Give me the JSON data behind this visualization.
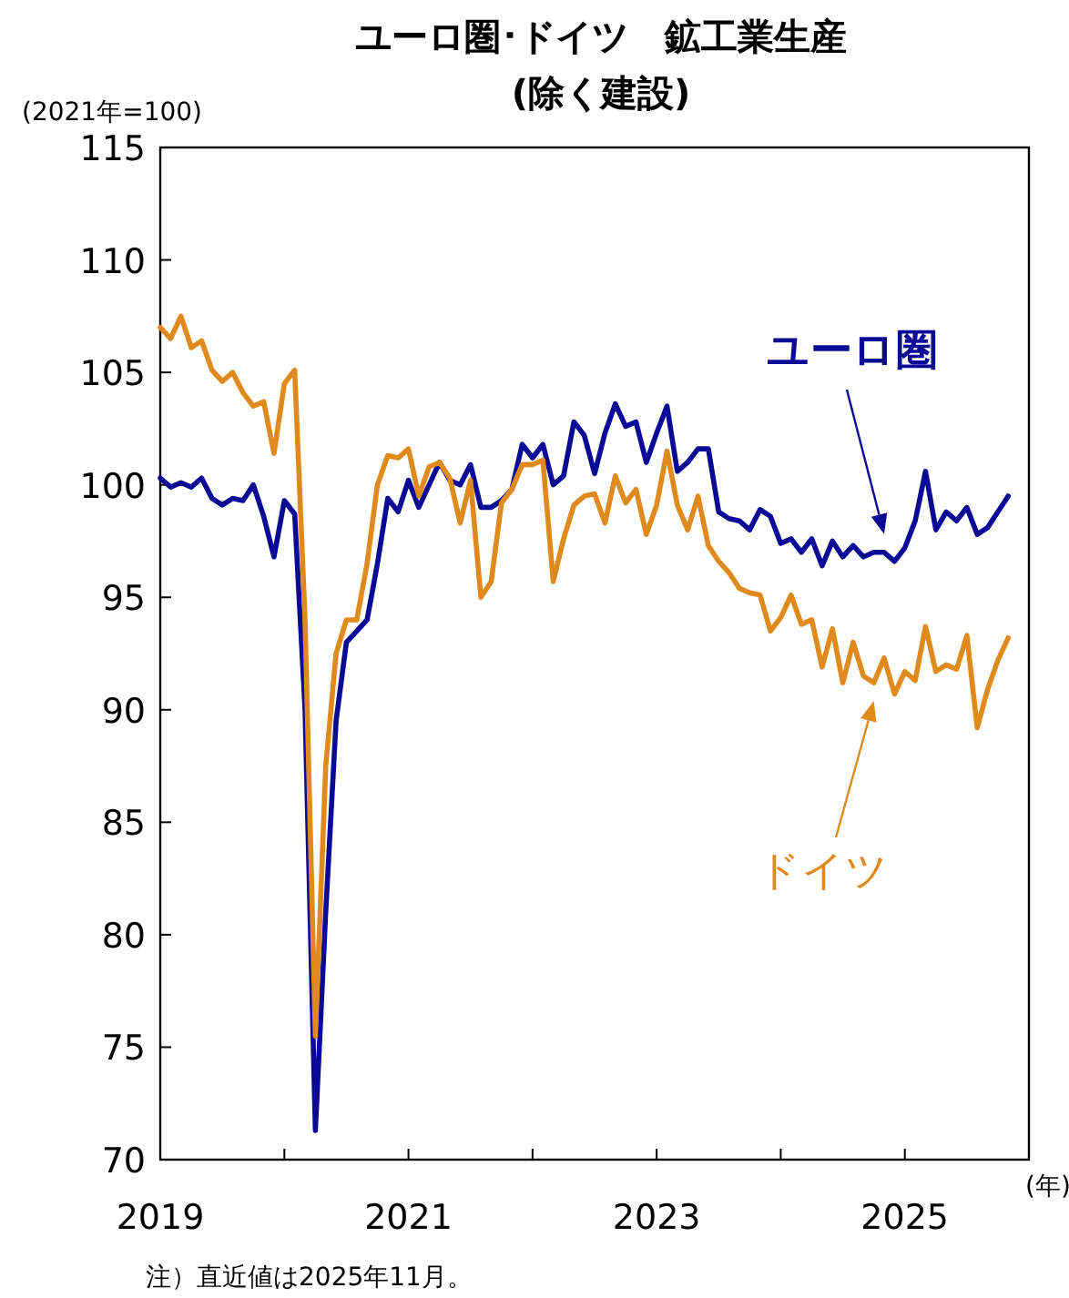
{
  "chart_data": {
    "type": "line",
    "title": "ユーロ圏･ドイツ　鉱工業生産",
    "subtitle": "(除く建設)",
    "ylabel": "(2021年=100)",
    "xlabel": "(年)",
    "annotations": [
      "注）直近値は2025年11月。"
    ],
    "x": [
      "2019-01",
      "2019-02",
      "2019-03",
      "2019-04",
      "2019-05",
      "2019-06",
      "2019-07",
      "2019-08",
      "2019-09",
      "2019-10",
      "2019-11",
      "2019-12",
      "2020-01",
      "2020-02",
      "2020-03",
      "2020-04",
      "2020-05",
      "2020-06",
      "2020-07",
      "2020-08",
      "2020-09",
      "2020-10",
      "2020-11",
      "2020-12",
      "2021-01",
      "2021-02",
      "2021-03",
      "2021-04",
      "2021-05",
      "2021-06",
      "2021-07",
      "2021-08",
      "2021-09",
      "2021-10",
      "2021-11",
      "2021-12",
      "2022-01",
      "2022-02",
      "2022-03",
      "2022-04",
      "2022-05",
      "2022-06",
      "2022-07",
      "2022-08",
      "2022-09",
      "2022-10",
      "2022-11",
      "2022-12",
      "2023-01",
      "2023-02",
      "2023-03",
      "2023-04",
      "2023-05",
      "2023-06",
      "2023-07",
      "2023-08",
      "2023-09",
      "2023-10",
      "2023-11",
      "2023-12",
      "2024-01",
      "2024-02",
      "2024-03",
      "2024-04",
      "2024-05",
      "2024-06",
      "2024-07",
      "2024-08",
      "2024-09",
      "2024-10",
      "2024-11",
      "2024-12",
      "2025-01",
      "2025-02",
      "2025-03",
      "2025-04",
      "2025-05",
      "2025-06",
      "2025-07",
      "2025-08",
      "2025-09",
      "2025-10",
      "2025-11"
    ],
    "series": [
      {
        "name": "ユーロ圏",
        "color": "#0a0a96",
        "values": [
          100.3,
          99.9,
          100.1,
          99.9,
          100.3,
          99.4,
          99.1,
          99.4,
          99.3,
          100.0,
          98.6,
          96.8,
          99.3,
          98.7,
          90.0,
          71.3,
          81.0,
          89.5,
          93.0,
          93.5,
          94.0,
          96.5,
          99.4,
          98.8,
          100.2,
          99.0,
          100.0,
          101.0,
          100.2,
          100.0,
          100.9,
          99.0,
          99.0,
          99.3,
          99.8,
          101.8,
          101.2,
          101.8,
          100.0,
          100.4,
          102.8,
          102.2,
          100.5,
          102.3,
          103.6,
          102.6,
          102.8,
          101.0,
          102.3,
          103.5,
          100.6,
          101.0,
          101.6,
          101.6,
          98.8,
          98.5,
          98.4,
          98.0,
          98.9,
          98.6,
          97.4,
          97.6,
          97.0,
          97.6,
          96.4,
          97.5,
          96.8,
          97.3,
          96.8,
          97.0,
          97.0,
          96.6,
          97.2,
          98.4,
          100.6,
          98.0,
          98.8,
          98.4,
          99.0,
          97.8,
          98.1,
          98.8,
          99.5
        ]
      },
      {
        "name": "ドイツ",
        "color": "#e08a1e",
        "values": [
          107.0,
          106.5,
          107.5,
          106.1,
          106.4,
          105.1,
          104.6,
          105.0,
          104.1,
          103.5,
          103.7,
          101.4,
          104.5,
          105.1,
          94.0,
          75.5,
          87.5,
          92.5,
          94.0,
          94.0,
          96.5,
          100.0,
          101.3,
          101.2,
          101.6,
          99.5,
          100.8,
          101.0,
          100.3,
          98.3,
          100.2,
          95.0,
          95.7,
          99.2,
          99.8,
          100.9,
          100.9,
          101.1,
          95.7,
          97.6,
          99.1,
          99.5,
          99.6,
          98.3,
          100.4,
          99.2,
          99.8,
          97.8,
          99.1,
          101.5,
          99.1,
          98.0,
          99.5,
          97.3,
          96.6,
          96.1,
          95.4,
          95.2,
          95.1,
          93.5,
          94.1,
          95.1,
          93.8,
          94.0,
          91.9,
          93.6,
          91.2,
          93.0,
          91.5,
          91.2,
          92.3,
          90.7,
          91.7,
          91.3,
          93.7,
          91.7,
          92.0,
          91.8,
          93.3,
          89.2,
          90.9,
          92.2,
          93.2
        ]
      }
    ],
    "xlim": [
      "2019-01",
      "2026-01"
    ],
    "xticks": [
      "2019",
      {
        "value": "2020",
        "label": null
      },
      "2021",
      {
        "value": "2022",
        "label": null
      },
      "2023",
      {
        "value": "2024",
        "label": null
      },
      "2025",
      {
        "value": "2026",
        "label": null
      }
    ],
    "ylim": [
      70,
      115
    ],
    "yticks": [
      70,
      75,
      80,
      85,
      90,
      95,
      100,
      105,
      110,
      115
    ],
    "grid": false,
    "legend": false,
    "marker": "none",
    "line_style": "solid"
  }
}
